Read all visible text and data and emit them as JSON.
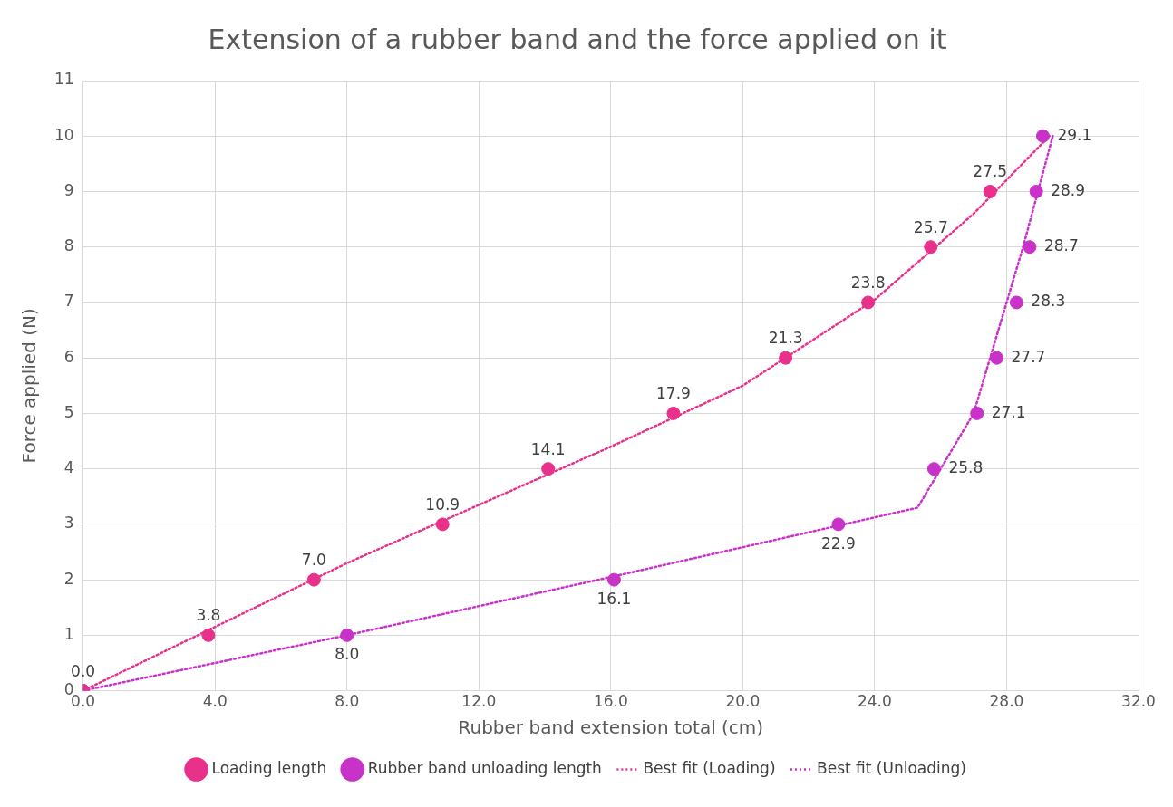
{
  "chart_data": {
    "type": "scatter",
    "title": "Extension of a rubber band and the force applied on it",
    "xlabel": "Rubber band extension total (cm)",
    "ylabel": "Force applied (N)",
    "xlim": [
      0,
      32
    ],
    "xticks": [
      {
        "value": 0,
        "label": "0.0"
      },
      {
        "value": 4,
        "label": "4.0"
      },
      {
        "value": 8,
        "label": "8.0"
      },
      {
        "value": 12,
        "label": "12.0"
      },
      {
        "value": 16,
        "label": "16.0"
      },
      {
        "value": 20,
        "label": "20.0"
      },
      {
        "value": 24,
        "label": "24.0"
      },
      {
        "value": 28,
        "label": "28.0"
      },
      {
        "value": 32,
        "label": "32.0"
      }
    ],
    "ylim": [
      0,
      11
    ],
    "yticks": [
      0,
      1,
      2,
      3,
      4,
      5,
      6,
      7,
      8,
      9,
      10,
      11
    ],
    "grid": true,
    "legend": "bottom",
    "marker": "circle",
    "series": [
      {
        "name": "Loading length",
        "color": "#e8318a",
        "x": [
          0,
          3.8,
          7.0,
          10.9,
          14.1,
          17.9,
          21.3,
          23.8,
          25.7,
          27.5
        ],
        "values": [
          0,
          1,
          2,
          3,
          4,
          5,
          6,
          7,
          8,
          9
        ]
      },
      {
        "name": "Rubber band unloading length",
        "color": "#c832c8",
        "x": [
          0,
          8.0,
          16.1,
          22.9,
          25.8,
          27.1,
          27.7,
          28.3,
          28.7,
          28.9,
          29.1
        ],
        "values": [
          0,
          1,
          2,
          3,
          4,
          5,
          6,
          7,
          8,
          9,
          10
        ]
      },
      {
        "name": "Best fit (Loading)",
        "type": "line",
        "color": "#e8318a",
        "marker": "none",
        "line_style": "dotted",
        "x": [
          0,
          4,
          8,
          12,
          16,
          20,
          24,
          27,
          29.3
        ],
        "values": [
          0,
          1.15,
          2.3,
          3.35,
          4.4,
          5.5,
          7.05,
          8.6,
          10
        ]
      },
      {
        "name": "Best fit (Unloading)",
        "type": "line",
        "color": "#c832c8",
        "marker": "none",
        "line_style": "dotted",
        "x": [
          0,
          8,
          16,
          25.3,
          27,
          28.5,
          29.4
        ],
        "values": [
          0,
          1,
          2.05,
          3.3,
          5,
          8,
          10
        ]
      }
    ],
    "annotations": [
      {
        "text": "0.0",
        "x": 0,
        "y": 0
      },
      {
        "text": "3.8",
        "x": 3.8,
        "y": 1
      },
      {
        "text": "7.0",
        "x": 7.0,
        "y": 2
      },
      {
        "text": "10.9",
        "x": 10.9,
        "y": 3
      },
      {
        "text": "14.1",
        "x": 14.1,
        "y": 4
      },
      {
        "text": "17.9",
        "x": 17.9,
        "y": 5
      },
      {
        "text": "21.3",
        "x": 21.3,
        "y": 6
      },
      {
        "text": "23.8",
        "x": 23.8,
        "y": 7
      },
      {
        "text": "25.7",
        "x": 25.7,
        "y": 8
      },
      {
        "text": "27.5",
        "x": 27.5,
        "y": 9
      },
      {
        "text": "8.0",
        "x": 8.0,
        "y": 1
      },
      {
        "text": "16.1",
        "x": 16.1,
        "y": 2
      },
      {
        "text": "22.9",
        "x": 22.9,
        "y": 3
      },
      {
        "text": "25.8",
        "x": 25.8,
        "y": 4
      },
      {
        "text": "27.1",
        "x": 27.1,
        "y": 5
      },
      {
        "text": "27.7",
        "x": 27.7,
        "y": 6
      },
      {
        "text": "28.3",
        "x": 28.3,
        "y": 7
      },
      {
        "text": "28.7",
        "x": 28.7,
        "y": 8
      },
      {
        "text": "28.9",
        "x": 28.9,
        "y": 9
      },
      {
        "text": "29.1",
        "x": 29.1,
        "y": 10
      }
    ]
  }
}
